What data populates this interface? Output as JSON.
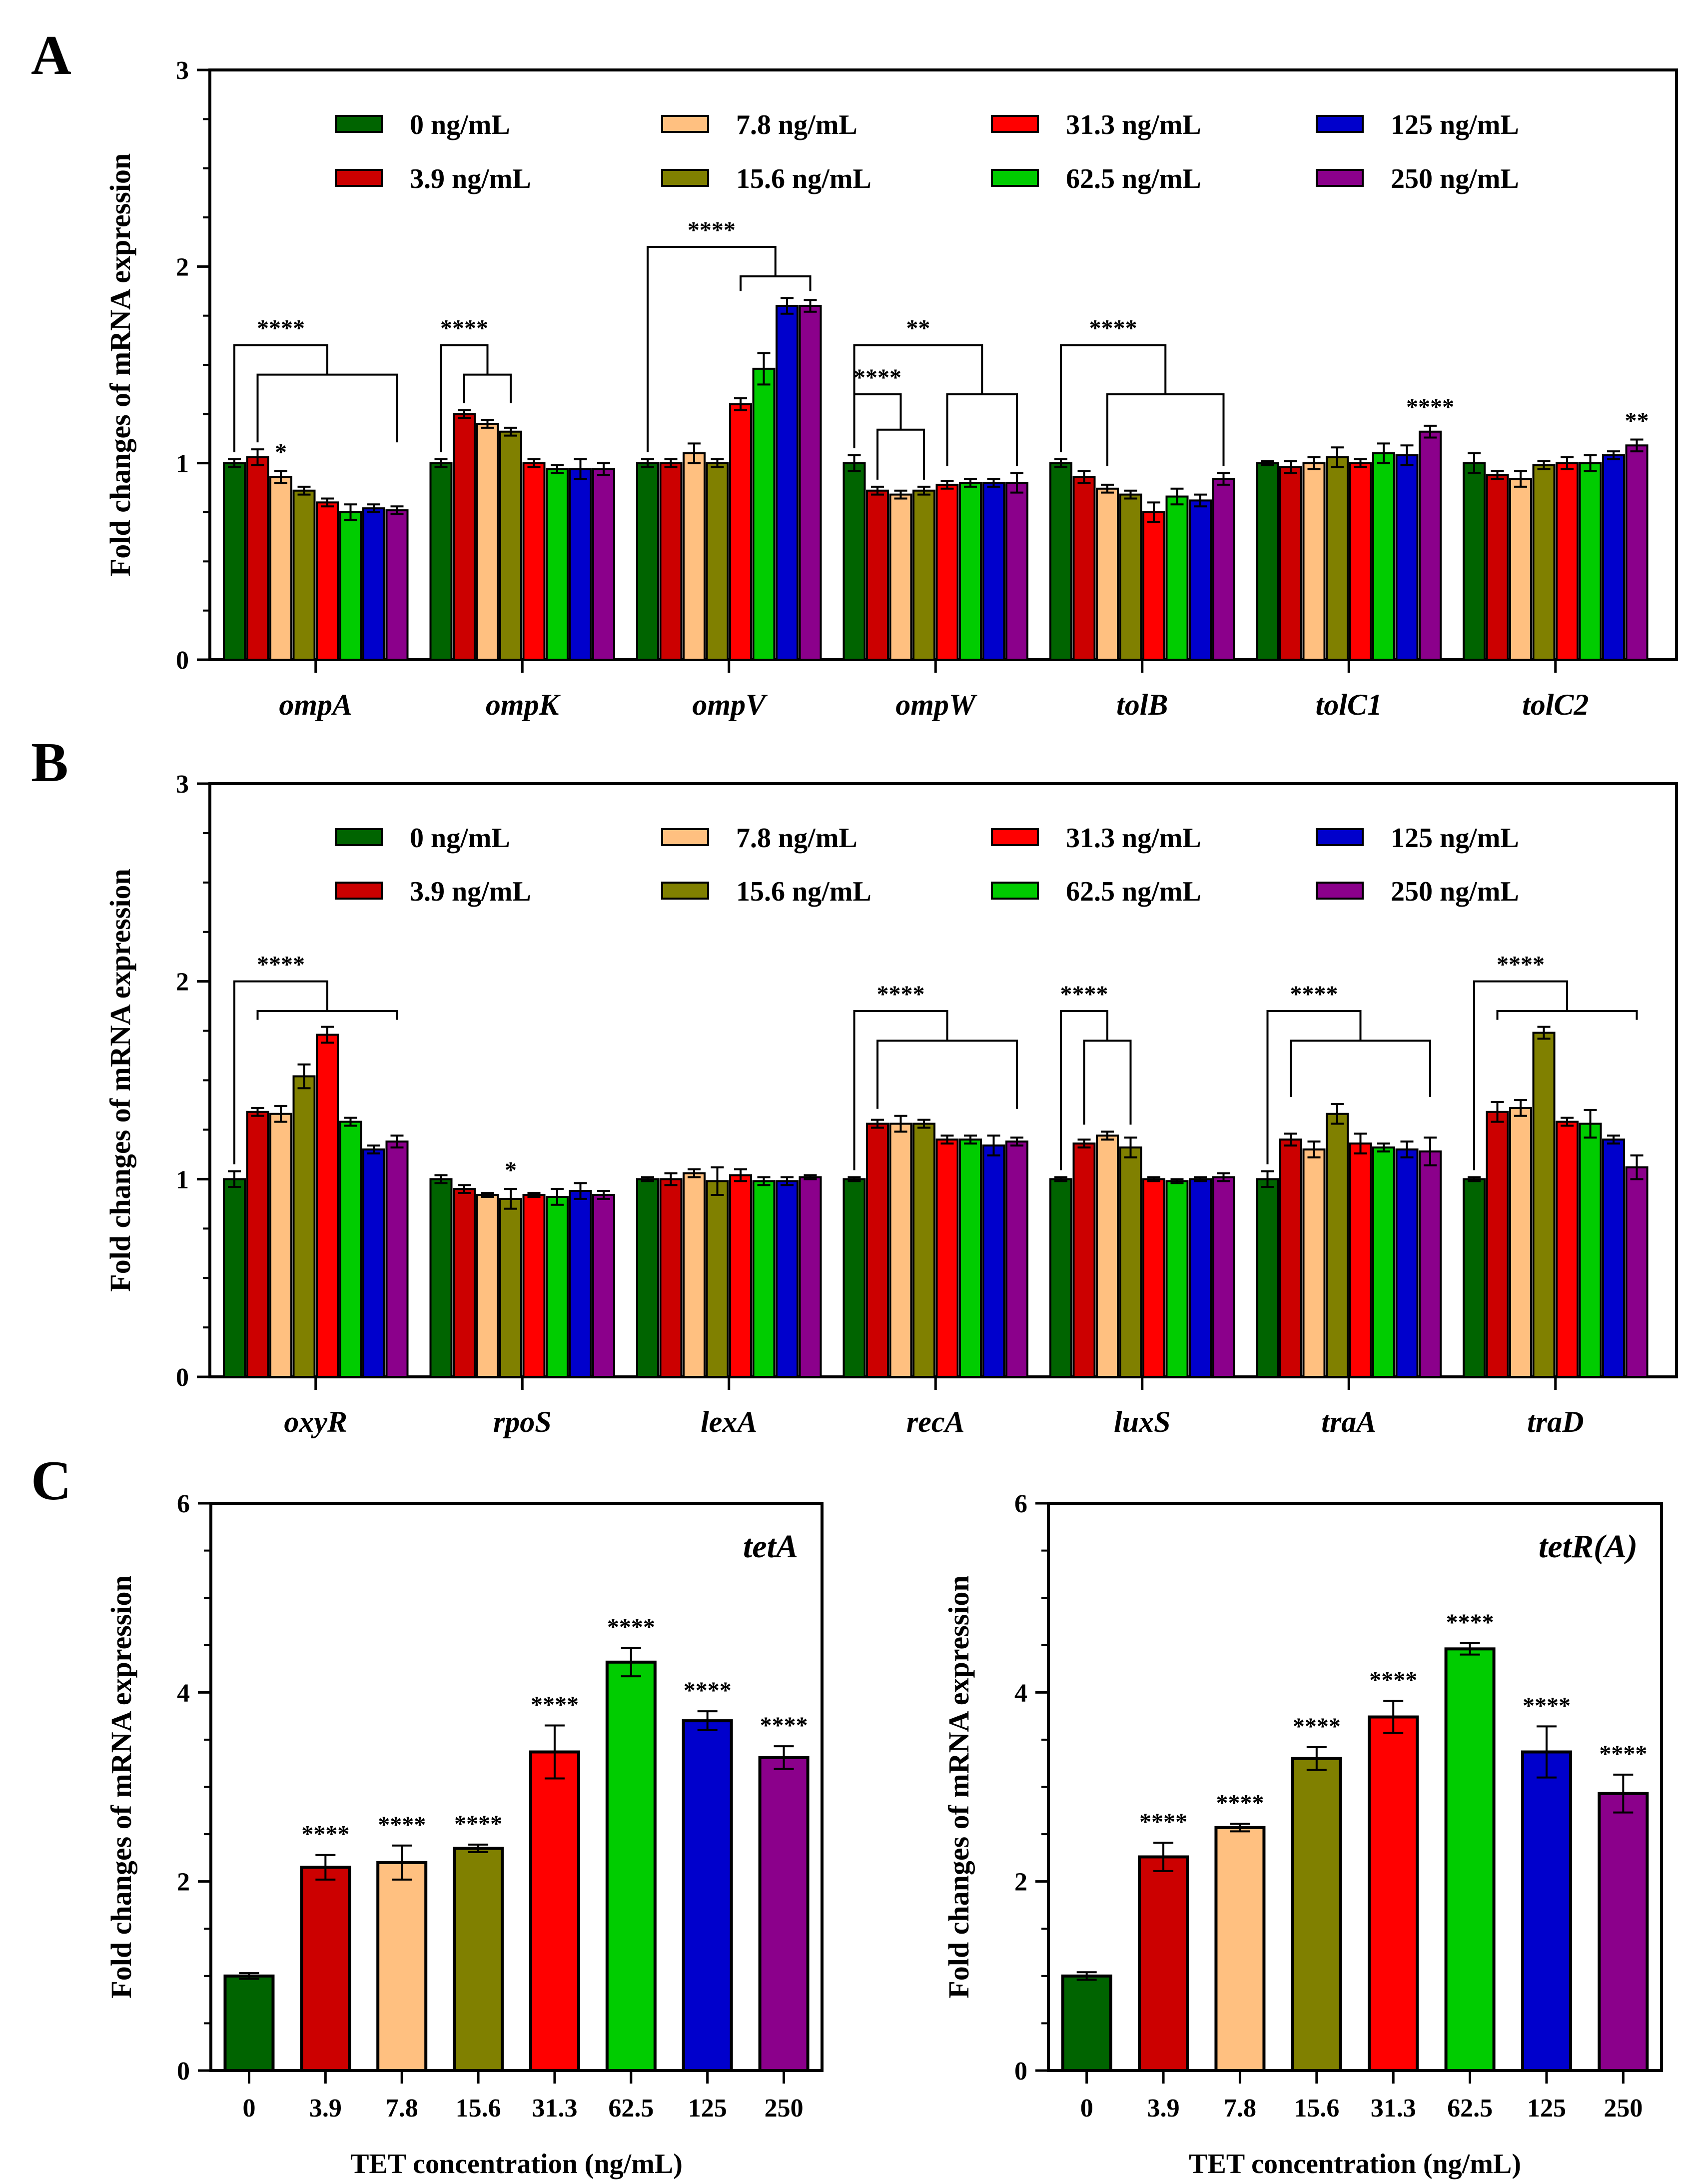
{
  "figure": {
    "panel_labels": [
      "A",
      "B",
      "C"
    ],
    "colors": [
      "#006400",
      "#cc0000",
      "#ffc080",
      "#808000",
      "#ff0000",
      "#00cc00",
      "#0000cc",
      "#8b008b"
    ],
    "legend_labels": [
      "0 ng/mL",
      "3.9 ng/mL",
      "7.8 ng/mL",
      "15.6 ng/mL",
      "31.3 ng/mL",
      "62.5 ng/mL",
      "125 ng/mL",
      "250 ng/mL"
    ]
  },
  "chart_data": [
    {
      "panel": "A",
      "type": "bar",
      "title": "",
      "xlabel": "",
      "ylabel": "Fold changes of mRNA expression",
      "ylim": [
        0,
        3
      ],
      "yticks": [
        0,
        1,
        2,
        3
      ],
      "categories": [
        "ompA",
        "ompK",
        "ompV",
        "ompW",
        "tolB",
        "tolC1",
        "tolC2"
      ],
      "legend": [
        "0 ng/mL",
        "3.9 ng/mL",
        "7.8 ng/mL",
        "15.6 ng/mL",
        "31.3 ng/mL",
        "62.5 ng/mL",
        "125 ng/mL",
        "250 ng/mL"
      ],
      "series": [
        {
          "name": "0 ng/mL",
          "values": [
            1.0,
            1.0,
            1.0,
            1.0,
            1.0,
            1.0,
            1.0
          ],
          "errors": [
            0.02,
            0.02,
            0.02,
            0.04,
            0.02,
            0.01,
            0.05
          ]
        },
        {
          "name": "3.9 ng/mL",
          "values": [
            1.03,
            1.25,
            1.0,
            0.86,
            0.93,
            0.98,
            0.94
          ],
          "errors": [
            0.04,
            0.02,
            0.02,
            0.02,
            0.03,
            0.03,
            0.02
          ]
        },
        {
          "name": "7.8 ng/mL",
          "values": [
            0.93,
            1.2,
            1.05,
            0.84,
            0.87,
            1.0,
            0.92
          ],
          "errors": [
            0.03,
            0.02,
            0.05,
            0.02,
            0.02,
            0.03,
            0.04
          ]
        },
        {
          "name": "15.6 ng/mL",
          "values": [
            0.86,
            1.16,
            1.0,
            0.86,
            0.84,
            1.03,
            0.99
          ],
          "errors": [
            0.02,
            0.02,
            0.02,
            0.02,
            0.02,
            0.05,
            0.02
          ]
        },
        {
          "name": "31.3 ng/mL",
          "values": [
            0.8,
            1.0,
            1.3,
            0.89,
            0.75,
            1.0,
            1.0
          ],
          "errors": [
            0.02,
            0.02,
            0.03,
            0.02,
            0.05,
            0.02,
            0.03
          ]
        },
        {
          "name": "62.5 ng/mL",
          "values": [
            0.75,
            0.97,
            1.48,
            0.9,
            0.83,
            1.05,
            1.0
          ],
          "errors": [
            0.04,
            0.02,
            0.08,
            0.02,
            0.04,
            0.05,
            0.04
          ]
        },
        {
          "name": "125 ng/mL",
          "values": [
            0.77,
            0.97,
            1.8,
            0.9,
            0.81,
            1.04,
            1.04
          ],
          "errors": [
            0.02,
            0.05,
            0.04,
            0.02,
            0.03,
            0.05,
            0.02
          ]
        },
        {
          "name": "250 ng/mL",
          "values": [
            0.76,
            0.97,
            1.8,
            0.9,
            0.92,
            1.16,
            1.09
          ],
          "errors": [
            0.02,
            0.03,
            0.03,
            0.05,
            0.03,
            0.03,
            0.03
          ]
        }
      ],
      "annotations": [
        {
          "label": "****",
          "category": 0,
          "kind": "bracket",
          "ref_series": 0,
          "span": [
            1,
            7
          ],
          "top": 1.6,
          "lower": 1.45
        },
        {
          "label": "*",
          "category": 0,
          "kind": "star",
          "series": 2
        },
        {
          "label": "****",
          "category": 1,
          "kind": "bracket",
          "ref_series": 0,
          "span": [
            1,
            3
          ],
          "top": 1.6,
          "lower": 1.45
        },
        {
          "label": "****",
          "category": 2,
          "kind": "bracket",
          "ref_series": 0,
          "span": [
            4,
            7
          ],
          "top": 2.1,
          "lower": 1.95
        },
        {
          "label": "****",
          "category": 3,
          "kind": "bracket",
          "ref_series": 0,
          "span": [
            1,
            3
          ],
          "top": 1.35,
          "lower": 1.17
        },
        {
          "label": "**",
          "category": 3,
          "kind": "bracket",
          "ref_series": 0,
          "span": [
            4,
            7
          ],
          "top": 1.6,
          "lower": 1.35
        },
        {
          "label": "****",
          "category": 4,
          "kind": "bracket",
          "ref_series": 0,
          "span": [
            2,
            7
          ],
          "top": 1.6,
          "lower": 1.35
        },
        {
          "label": "****",
          "category": 5,
          "kind": "star",
          "series": 7
        },
        {
          "label": "**",
          "category": 6,
          "kind": "star",
          "series": 7
        }
      ]
    },
    {
      "panel": "B",
      "type": "bar",
      "title": "",
      "xlabel": "",
      "ylabel": "Fold changes of mRNA expression",
      "ylim": [
        0,
        3
      ],
      "yticks": [
        0,
        1,
        2,
        3
      ],
      "categories": [
        "oxyR",
        "rpoS",
        "lexA",
        "recA",
        "luxS",
        "traA",
        "traD"
      ],
      "legend": [
        "0 ng/mL",
        "3.9 ng/mL",
        "7.8 ng/mL",
        "15.6 ng/mL",
        "31.3 ng/mL",
        "62.5 ng/mL",
        "125 ng/mL",
        "250 ng/mL"
      ],
      "series": [
        {
          "name": "0 ng/mL",
          "values": [
            1.0,
            1.0,
            1.0,
            1.0,
            1.0,
            1.0,
            1.0
          ],
          "errors": [
            0.04,
            0.02,
            0.01,
            0.01,
            0.01,
            0.04,
            0.01
          ]
        },
        {
          "name": "3.9 ng/mL",
          "values": [
            1.34,
            0.95,
            1.0,
            1.28,
            1.18,
            1.2,
            1.34
          ],
          "errors": [
            0.02,
            0.02,
            0.03,
            0.02,
            0.02,
            0.03,
            0.05
          ]
        },
        {
          "name": "7.8 ng/mL",
          "values": [
            1.33,
            0.92,
            1.03,
            1.28,
            1.22,
            1.15,
            1.36
          ],
          "errors": [
            0.04,
            0.01,
            0.02,
            0.04,
            0.02,
            0.04,
            0.04
          ]
        },
        {
          "name": "15.6 ng/mL",
          "values": [
            1.52,
            0.9,
            0.99,
            1.28,
            1.16,
            1.33,
            1.74
          ],
          "errors": [
            0.06,
            0.05,
            0.07,
            0.02,
            0.05,
            0.05,
            0.03
          ]
        },
        {
          "name": "31.3 ng/mL",
          "values": [
            1.73,
            0.92,
            1.02,
            1.2,
            1.0,
            1.18,
            1.29
          ],
          "errors": [
            0.04,
            0.01,
            0.03,
            0.02,
            0.01,
            0.05,
            0.02
          ]
        },
        {
          "name": "62.5 ng/mL",
          "values": [
            1.29,
            0.91,
            0.99,
            1.2,
            0.99,
            1.16,
            1.28
          ],
          "errors": [
            0.02,
            0.04,
            0.02,
            0.02,
            0.01,
            0.02,
            0.07
          ]
        },
        {
          "name": "125 ng/mL",
          "values": [
            1.15,
            0.94,
            0.99,
            1.17,
            1.0,
            1.15,
            1.2
          ],
          "errors": [
            0.02,
            0.04,
            0.02,
            0.05,
            0.01,
            0.04,
            0.02
          ]
        },
        {
          "name": "250 ng/mL",
          "values": [
            1.19,
            0.92,
            1.01,
            1.19,
            1.01,
            1.14,
            1.06
          ],
          "errors": [
            0.03,
            0.02,
            0.01,
            0.02,
            0.02,
            0.07,
            0.06
          ]
        }
      ],
      "annotations": [
        {
          "label": "****",
          "category": 0,
          "kind": "bracket",
          "ref_series": 0,
          "span": [
            1,
            7
          ],
          "top": 2.0,
          "lower": 1.85
        },
        {
          "label": "*",
          "category": 1,
          "kind": "star",
          "series": 3
        },
        {
          "label": "****",
          "category": 3,
          "kind": "bracket",
          "ref_series": 0,
          "span": [
            1,
            7
          ],
          "top": 1.85,
          "lower": 1.7
        },
        {
          "label": "****",
          "category": 4,
          "kind": "bracket",
          "ref_series": 0,
          "span": [
            1,
            3
          ],
          "top": 1.85,
          "lower": 1.7
        },
        {
          "label": "****",
          "category": 5,
          "kind": "bracket",
          "ref_series": 0,
          "span": [
            1,
            7
          ],
          "top": 1.85,
          "lower": 1.7
        },
        {
          "label": "****",
          "category": 6,
          "kind": "bracket",
          "ref_series": 0,
          "span": [
            1,
            7
          ],
          "top": 2.0,
          "lower": 1.85
        }
      ]
    },
    {
      "panel": "C",
      "type": "bar",
      "title": "tetA",
      "xlabel": "TET concentration (ng/mL)",
      "ylabel": "Fold changes of mRNA expression",
      "ylim": [
        0,
        6
      ],
      "yticks": [
        0,
        2,
        4,
        6
      ],
      "categories": [
        "0",
        "3.9",
        "7.8",
        "15.6",
        "31.3",
        "62.5",
        "125",
        "250"
      ],
      "values": [
        1.0,
        2.15,
        2.2,
        2.35,
        3.37,
        4.32,
        3.7,
        3.31
      ],
      "errors": [
        0.03,
        0.13,
        0.18,
        0.04,
        0.28,
        0.15,
        0.1,
        0.12
      ],
      "significance": [
        "",
        "****",
        "****",
        "****",
        "****",
        "****",
        "****",
        "****"
      ]
    },
    {
      "panel": "C",
      "type": "bar",
      "title": "tetR(A)",
      "xlabel": "TET concentration (ng/mL)",
      "ylabel": "Fold changes of mRNA expression",
      "ylim": [
        0,
        6
      ],
      "yticks": [
        0,
        2,
        4,
        6
      ],
      "categories": [
        "0",
        "3.9",
        "7.8",
        "15.6",
        "31.3",
        "62.5",
        "125",
        "250"
      ],
      "values": [
        1.0,
        2.26,
        2.57,
        3.3,
        3.74,
        4.46,
        3.37,
        2.93
      ],
      "errors": [
        0.04,
        0.15,
        0.04,
        0.12,
        0.17,
        0.06,
        0.27,
        0.2
      ],
      "significance": [
        "",
        "****",
        "****",
        "****",
        "****",
        "****",
        "****",
        "****"
      ]
    }
  ]
}
